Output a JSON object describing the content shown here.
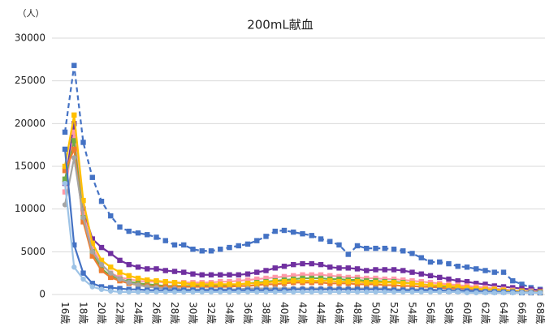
{
  "chart_data": {
    "type": "line",
    "title": "200mL献血",
    "y_unit_label": "（人）",
    "categories": [
      "16歳",
      null,
      "18歳",
      null,
      "20歳",
      null,
      "22歳",
      null,
      "24歳",
      null,
      "26歳",
      null,
      "28歳",
      null,
      "30歳",
      null,
      "32歳",
      null,
      "34歳",
      null,
      "36歳",
      null,
      "38歳",
      null,
      "40歳",
      null,
      "42歳",
      null,
      "44歳",
      null,
      "46歳",
      null,
      "48歳",
      null,
      "50歳",
      null,
      "52歳",
      null,
      "54歳",
      null,
      "56歳",
      null,
      "58歳",
      null,
      "60歳",
      null,
      "62歳",
      null,
      "64歳",
      null,
      "66歳",
      null,
      "68歳"
    ],
    "ylim": [
      0,
      30000
    ],
    "yticks": [
      0,
      5000,
      10000,
      15000,
      20000,
      25000,
      30000
    ],
    "grid": true,
    "series": [
      {
        "color": "#4472c4",
        "dashed": true,
        "marker": "square",
        "values": [
          19000,
          26800,
          17800,
          13700,
          10900,
          9200,
          7900,
          7400,
          7200,
          7000,
          6700,
          6300,
          5800,
          5800,
          5300,
          5100,
          5100,
          5300,
          5500,
          5700,
          5900,
          6300,
          6800,
          7400,
          7500,
          7300,
          7100,
          6900,
          6500,
          6200,
          5800,
          4700,
          5700,
          5400,
          5400,
          5400,
          5300,
          5100,
          4800,
          4300,
          3800,
          3800,
          3600,
          3300,
          3200,
          3000,
          2800,
          2600,
          2600,
          1600,
          1200,
          800,
          600
        ]
      },
      {
        "color": "#7030a0",
        "dashed": false,
        "marker": "square",
        "values": [
          13000,
          20000,
          10000,
          6500,
          5500,
          4800,
          4000,
          3500,
          3200,
          3000,
          3000,
          2800,
          2700,
          2600,
          2400,
          2300,
          2300,
          2300,
          2300,
          2300,
          2400,
          2600,
          2800,
          3100,
          3300,
          3500,
          3600,
          3600,
          3500,
          3200,
          3100,
          3100,
          3000,
          2800,
          2900,
          2900,
          2900,
          2800,
          2600,
          2400,
          2200,
          2000,
          1800,
          1600,
          1500,
          1300,
          1200,
          1000,
          900,
          800,
          700,
          600,
          500
        ]
      },
      {
        "color": "#ff99a8",
        "dashed": false,
        "marker": "square",
        "values": [
          12000,
          19000,
          9500,
          5500,
          3500,
          2500,
          2000,
          1800,
          1600,
          1500,
          1500,
          1400,
          1400,
          1400,
          1400,
          1400,
          1400,
          1500,
          1500,
          1600,
          1700,
          1800,
          1900,
          2000,
          2100,
          2200,
          2300,
          2300,
          2300,
          2200,
          2100,
          2000,
          2000,
          1900,
          1900,
          1800,
          1800,
          1700,
          1600,
          1500,
          1400,
          1300,
          1200,
          1100,
          1000,
          900,
          800,
          700,
          600,
          500,
          400,
          400,
          300
        ]
      },
      {
        "color": "#70ad47",
        "dashed": false,
        "marker": "square",
        "values": [
          13500,
          18000,
          9000,
          5000,
          3000,
          2200,
          1800,
          1500,
          1300,
          1200,
          1100,
          1000,
          1000,
          1000,
          1000,
          1000,
          1000,
          1100,
          1100,
          1200,
          1300,
          1400,
          1500,
          1600,
          1700,
          1800,
          1900,
          1900,
          1900,
          1800,
          1800,
          1700,
          1700,
          1600,
          1600,
          1500,
          1500,
          1400,
          1300,
          1200,
          1100,
          1000,
          900,
          800,
          700,
          600,
          500,
          500,
          400,
          400,
          300,
          300,
          200
        ]
      },
      {
        "color": "#ed7d31",
        "dashed": false,
        "marker": "square",
        "values": [
          14500,
          17000,
          8500,
          4500,
          2800,
          2000,
          1600,
          1300,
          1100,
          1000,
          900,
          900,
          900,
          900,
          900,
          900,
          900,
          900,
          900,
          1000,
          1000,
          1100,
          1200,
          1200,
          1300,
          1400,
          1400,
          1400,
          1400,
          1300,
          1300,
          1300,
          1200,
          1200,
          1200,
          1100,
          1100,
          1000,
          1000,
          900,
          900,
          800,
          700,
          700,
          600,
          500,
          500,
          400,
          400,
          300,
          300,
          200,
          200
        ]
      },
      {
        "color": "#ffc000",
        "dashed": false,
        "marker": "square",
        "values": [
          15000,
          21000,
          11000,
          6000,
          4000,
          3200,
          2600,
          2200,
          1900,
          1700,
          1600,
          1500,
          1400,
          1300,
          1200,
          1200,
          1200,
          1200,
          1200,
          1200,
          1300,
          1300,
          1400,
          1500,
          1500,
          1600,
          1600,
          1600,
          1600,
          1600,
          1500,
          1500,
          1500,
          1400,
          1400,
          1400,
          1400,
          1300,
          1300,
          1200,
          1100,
          1100,
          1000,
          900,
          800,
          700,
          600,
          600,
          500,
          400,
          400,
          300,
          300
        ]
      },
      {
        "color": "#a5a5a5",
        "dashed": false,
        "marker": "circle",
        "values": [
          10500,
          16000,
          9000,
          5000,
          3500,
          2500,
          1800,
          1400,
          1100,
          900,
          800,
          700,
          700,
          600,
          600,
          600,
          600,
          600,
          600,
          600,
          700,
          700,
          700,
          700,
          700,
          700,
          700,
          700,
          700,
          700,
          700,
          700,
          700,
          700,
          700,
          700,
          600,
          600,
          600,
          600,
          600,
          500,
          500,
          500,
          500,
          400,
          400,
          400,
          300,
          300,
          300,
          300,
          200
        ]
      },
      {
        "color": "#4472c4",
        "dashed": false,
        "marker": "square",
        "values": [
          17000,
          5800,
          2500,
          1300,
          900,
          800,
          700,
          600,
          600,
          500,
          500,
          500,
          500,
          500,
          500,
          500,
          500,
          500,
          500,
          500,
          500,
          500,
          500,
          500,
          500,
          600,
          600,
          600,
          600,
          600,
          600,
          600,
          600,
          600,
          600,
          600,
          500,
          500,
          500,
          500,
          500,
          500,
          400,
          400,
          400,
          400,
          300,
          300,
          300,
          300,
          200,
          200,
          200
        ]
      },
      {
        "color": "#9dc3e6",
        "dashed": false,
        "marker": "circle",
        "values": [
          13000,
          3200,
          1800,
          900,
          600,
          400,
          300,
          300,
          300,
          300,
          300,
          300,
          300,
          300,
          300,
          300,
          300,
          300,
          300,
          300,
          300,
          300,
          300,
          300,
          300,
          300,
          300,
          300,
          300,
          300,
          300,
          300,
          300,
          300,
          300,
          300,
          300,
          300,
          300,
          300,
          300,
          300,
          300,
          300,
          200,
          200,
          200,
          200,
          200,
          200,
          200,
          200,
          200
        ]
      }
    ]
  }
}
